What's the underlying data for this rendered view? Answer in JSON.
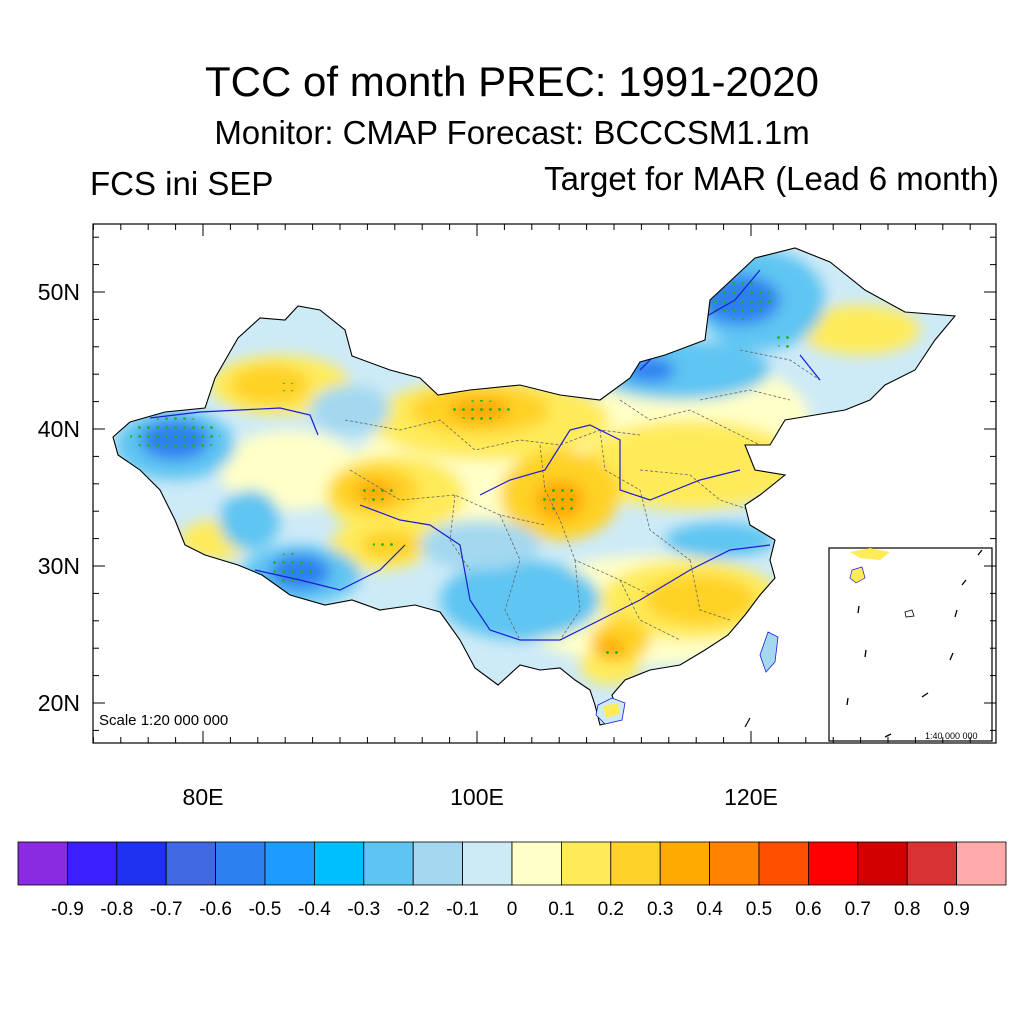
{
  "title": "TCC of month PREC: 1991-2020",
  "subtitle": "Monitor: CMAP   Forecast: BCCCSM1.1m",
  "left_label": "FCS ini SEP",
  "right_label": "Target for MAR (Lead 6 month)",
  "scale_main": "Scale 1:20 000 000",
  "scale_inset": "1:40 000 000",
  "map": {
    "lat_ticks": [
      "50N",
      "40N",
      "30N",
      "20N"
    ],
    "lon_ticks": [
      "80E",
      "100E",
      "120E"
    ],
    "lat_range": [
      16,
      55
    ],
    "lon_range": [
      72,
      138
    ],
    "significance_markers": "green dots"
  },
  "colorbar": {
    "labels": [
      "-0.9",
      "-0.8",
      "-0.7",
      "-0.6",
      "-0.5",
      "-0.4",
      "-0.3",
      "-0.2",
      "-0.1",
      "0",
      "0.1",
      "0.2",
      "0.3",
      "0.4",
      "0.5",
      "0.6",
      "0.7",
      "0.8",
      "0.9"
    ],
    "colors": [
      "#8a2be2",
      "#3b1fff",
      "#1e30f0",
      "#4169e1",
      "#2d80f0",
      "#1e9bff",
      "#00bfff",
      "#5ec5f2",
      "#a3d8f0",
      "#cdeaf7",
      "#ffffc8",
      "#ffeb5a",
      "#ffd228",
      "#ffaa00",
      "#ff8200",
      "#ff5000",
      "#ff0000",
      "#d20000",
      "#d83232",
      "#ffaaaa"
    ]
  }
}
